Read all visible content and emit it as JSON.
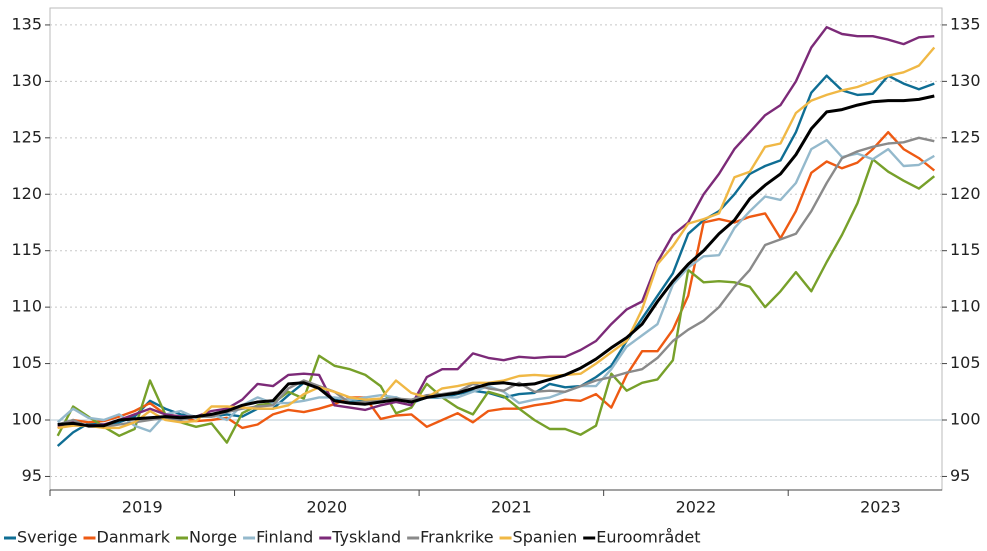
{
  "chart_data": {
    "type": "line",
    "categories": [
      null,
      null,
      null,
      null,
      null,
      null,
      "2019",
      null,
      null,
      null,
      null,
      null,
      null,
      null,
      null,
      null,
      null,
      null,
      "2020",
      null,
      null,
      null,
      null,
      null,
      null,
      null,
      null,
      null,
      null,
      null,
      "2021",
      null,
      null,
      null,
      null,
      null,
      null,
      null,
      null,
      null,
      null,
      null,
      "2022",
      null,
      null,
      null,
      null,
      null,
      null,
      null,
      null,
      null,
      null,
      null,
      "2023",
      null,
      null,
      null
    ],
    "ylim": [
      93.8,
      136.5
    ],
    "yticks": [
      95,
      100,
      105,
      110,
      115,
      120,
      125,
      130,
      135
    ],
    "y2lim": [
      93.8,
      136.5
    ],
    "y2ticks": [
      95,
      100,
      105,
      110,
      115,
      120,
      125,
      130,
      135
    ],
    "grid": true,
    "legend": "bottom",
    "series": [
      {
        "name": "Sverige",
        "color": "#0f6e94",
        "values": [
          97.7,
          98.9,
          99.7,
          99.6,
          99.8,
          100.3,
          101.7,
          101.0,
          100.5,
          100.3,
          100.3,
          100.5,
          100.3,
          101.0,
          101.0,
          102.2,
          103.3,
          102.9,
          101.8,
          101.6,
          101.7,
          101.8,
          102.0,
          101.5,
          102.0,
          102.0,
          102.3,
          102.6,
          102.4,
          102.0,
          102.3,
          102.4,
          103.2,
          102.9,
          103.0,
          103.8,
          104.8,
          107.0,
          109.0,
          111.0,
          113.0,
          116.5,
          117.7,
          118.5,
          120.0,
          121.8,
          122.5,
          123.0,
          125.5,
          129.0,
          130.5,
          129.2,
          128.8,
          128.9,
          130.5,
          129.8,
          129.3,
          129.8
        ]
      },
      {
        "name": "Danmark",
        "color": "#ee5a13",
        "values": [
          99.3,
          100.0,
          99.8,
          99.9,
          100.3,
          100.8,
          101.5,
          100.5,
          100.3,
          99.9,
          100.0,
          100.2,
          99.3,
          99.6,
          100.5,
          100.9,
          100.7,
          101.0,
          101.4,
          102.0,
          102.0,
          100.1,
          100.4,
          100.5,
          99.4,
          100.0,
          100.6,
          99.8,
          100.8,
          101.0,
          101.0,
          101.3,
          101.5,
          101.8,
          101.7,
          102.3,
          101.1,
          104.0,
          106.1,
          106.1,
          108.0,
          111.0,
          117.5,
          117.8,
          117.5,
          118.0,
          118.3,
          116.1,
          118.5,
          121.9,
          122.9,
          122.3,
          122.8,
          124.0,
          125.5,
          124.0,
          123.2,
          122.1
        ]
      },
      {
        "name": "Norge",
        "color": "#77a02a",
        "values": [
          98.6,
          101.2,
          100.3,
          99.4,
          98.6,
          99.2,
          103.5,
          100.5,
          99.8,
          99.4,
          99.7,
          98.0,
          100.6,
          101.3,
          101.5,
          102.5,
          101.9,
          105.7,
          104.8,
          104.5,
          104.0,
          103.0,
          100.6,
          101.1,
          103.2,
          102.0,
          101.1,
          100.5,
          102.5,
          102.1,
          101.0,
          100.0,
          99.2,
          99.2,
          98.7,
          99.5,
          104.1,
          102.6,
          103.3,
          103.6,
          105.3,
          113.3,
          112.2,
          112.3,
          112.2,
          111.8,
          110.0,
          111.4,
          113.1,
          111.4,
          114.0,
          116.4,
          119.2,
          123.1,
          122.0,
          121.2,
          120.5,
          121.6
        ]
      },
      {
        "name": "Finland",
        "color": "#94b9cc",
        "values": [
          99.8,
          101.0,
          100.2,
          100.0,
          100.5,
          99.5,
          99.0,
          100.5,
          100.8,
          100.2,
          100.5,
          100.0,
          101.3,
          102.0,
          101.5,
          101.5,
          101.7,
          102.0,
          102.0,
          101.8,
          102.0,
          102.2,
          102.0,
          101.5,
          102.2,
          102.0,
          102.0,
          102.5,
          103.0,
          102.5,
          101.5,
          101.8,
          102.0,
          102.5,
          103.0,
          103.0,
          104.5,
          106.5,
          107.5,
          108.5,
          112.0,
          113.5,
          114.5,
          114.6,
          117.0,
          118.5,
          119.8,
          119.5,
          121.0,
          124.0,
          124.8,
          123.3,
          123.6,
          123.1,
          124.0,
          122.5,
          122.6,
          123.4
        ]
      },
      {
        "name": "Tyskland",
        "color": "#7c2a78",
        "values": [
          99.5,
          99.8,
          99.5,
          99.6,
          100.0,
          100.5,
          101.0,
          100.5,
          100.3,
          100.3,
          100.8,
          101.0,
          101.8,
          103.2,
          103.0,
          104.0,
          104.1,
          104.0,
          101.3,
          101.1,
          100.9,
          101.3,
          101.6,
          101.3,
          103.8,
          104.5,
          104.5,
          105.9,
          105.5,
          105.3,
          105.6,
          105.5,
          105.6,
          105.6,
          106.2,
          107.0,
          108.5,
          109.8,
          110.5,
          114.0,
          116.4,
          117.5,
          120.0,
          121.8,
          124.0,
          125.5,
          127.0,
          127.9,
          130.0,
          133.0,
          134.8,
          134.2,
          134.0,
          134.0,
          133.7,
          133.3,
          133.9,
          134.0
        ]
      },
      {
        "name": "Frankrike",
        "color": "#8a8a8a",
        "values": [
          99.6,
          100.0,
          99.4,
          99.4,
          99.6,
          99.8,
          100.0,
          100.2,
          100.0,
          100.3,
          100.3,
          100.7,
          101.0,
          101.2,
          101.3,
          102.8,
          103.5,
          103.0,
          102.5,
          101.5,
          101.6,
          101.8,
          101.9,
          101.8,
          102.2,
          102.3,
          102.5,
          103.2,
          102.8,
          102.6,
          103.3,
          102.5,
          102.6,
          102.5,
          103.0,
          103.5,
          103.8,
          104.2,
          104.5,
          105.5,
          107.0,
          108.0,
          108.8,
          110.0,
          111.8,
          113.3,
          115.5,
          116.0,
          116.5,
          118.5,
          121.0,
          123.2,
          123.8,
          124.2,
          124.5,
          124.6,
          125.0,
          124.7
        ]
      },
      {
        "name": "Spanien",
        "color": "#f0b845",
        "values": [
          99.3,
          99.5,
          99.5,
          99.3,
          99.3,
          99.8,
          100.8,
          100.0,
          99.8,
          99.9,
          101.2,
          101.2,
          101.1,
          101.0,
          101.0,
          101.3,
          102.3,
          102.9,
          102.5,
          102.0,
          101.8,
          101.9,
          103.5,
          102.4,
          102.0,
          102.8,
          103.0,
          103.3,
          103.3,
          103.5,
          103.9,
          104.0,
          103.9,
          104.0,
          104.1,
          105.0,
          106.0,
          107.0,
          109.8,
          113.8,
          115.4,
          117.4,
          117.8,
          118.3,
          121.5,
          122.0,
          124.2,
          124.5,
          127.2,
          128.3,
          128.8,
          129.2,
          129.5,
          130.0,
          130.5,
          130.8,
          131.4,
          133.0
        ]
      },
      {
        "name": "Euroområdet",
        "color": "#000000",
        "values": [
          99.6,
          99.7,
          99.5,
          99.5,
          100.0,
          100.1,
          100.2,
          100.3,
          100.2,
          100.3,
          100.5,
          100.8,
          101.3,
          101.6,
          101.7,
          103.2,
          103.3,
          102.8,
          101.7,
          101.5,
          101.4,
          101.6,
          101.8,
          101.6,
          102.0,
          102.2,
          102.4,
          102.8,
          103.2,
          103.3,
          103.1,
          103.2,
          103.6,
          104.0,
          104.6,
          105.4,
          106.4,
          107.3,
          108.5,
          110.5,
          112.3,
          113.8,
          115.0,
          116.5,
          117.7,
          119.6,
          120.8,
          121.8,
          123.5,
          125.8,
          127.3,
          127.5,
          127.9,
          128.2,
          128.3,
          128.3,
          128.4,
          128.7
        ]
      }
    ]
  }
}
